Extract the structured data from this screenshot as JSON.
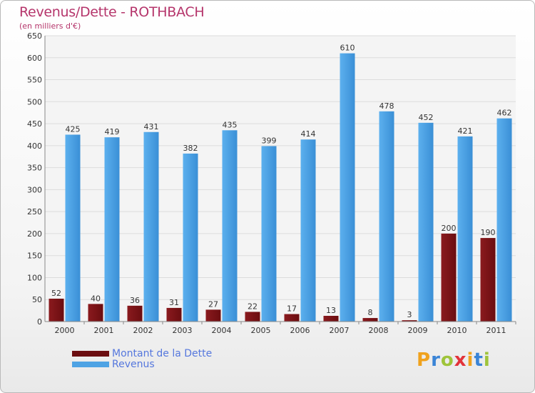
{
  "header": {
    "title": "Revenus/Dette - ROTHBACH",
    "subtitle": "(en milliers d'€)"
  },
  "colors": {
    "dette": "#6b0d10",
    "revenus": "#4ea3e4",
    "text": "#333333",
    "accent": "#b5356b"
  },
  "chart_data": {
    "type": "bar",
    "title": "Revenus/Dette - ROTHBACH",
    "subtitle": "(en milliers d'€)",
    "xlabel": "",
    "ylabel": "",
    "categories": [
      "2000",
      "2001",
      "2002",
      "2003",
      "2004",
      "2005",
      "2006",
      "2007",
      "2008",
      "2009",
      "2010",
      "2011"
    ],
    "series": [
      {
        "name": "Montant de la Dette",
        "values": [
          52,
          40,
          36,
          31,
          27,
          22,
          17,
          13,
          8,
          3,
          200,
          190
        ]
      },
      {
        "name": "Revenus",
        "values": [
          425,
          419,
          431,
          382,
          435,
          399,
          414,
          610,
          478,
          452,
          421,
          462
        ]
      }
    ],
    "ylim": [
      0,
      650
    ],
    "yticks": [
      0,
      50,
      100,
      150,
      200,
      250,
      300,
      350,
      400,
      450,
      500,
      550,
      600,
      650
    ],
    "grid": true,
    "legend": "bottom-left"
  },
  "legend": {
    "items": [
      {
        "label": "Montant de la Dette",
        "color": "#6b0d10"
      },
      {
        "label": "Revenus",
        "color": "#4ea3e4"
      }
    ]
  },
  "logo": {
    "letters": [
      "P",
      "r",
      "o",
      "x",
      "i",
      "t",
      "i"
    ],
    "colors": [
      "#f0a21d",
      "#3a84d6",
      "#9fc43a",
      "#e2333a",
      "#f0a21d",
      "#3a84d6",
      "#9fc43a"
    ]
  }
}
